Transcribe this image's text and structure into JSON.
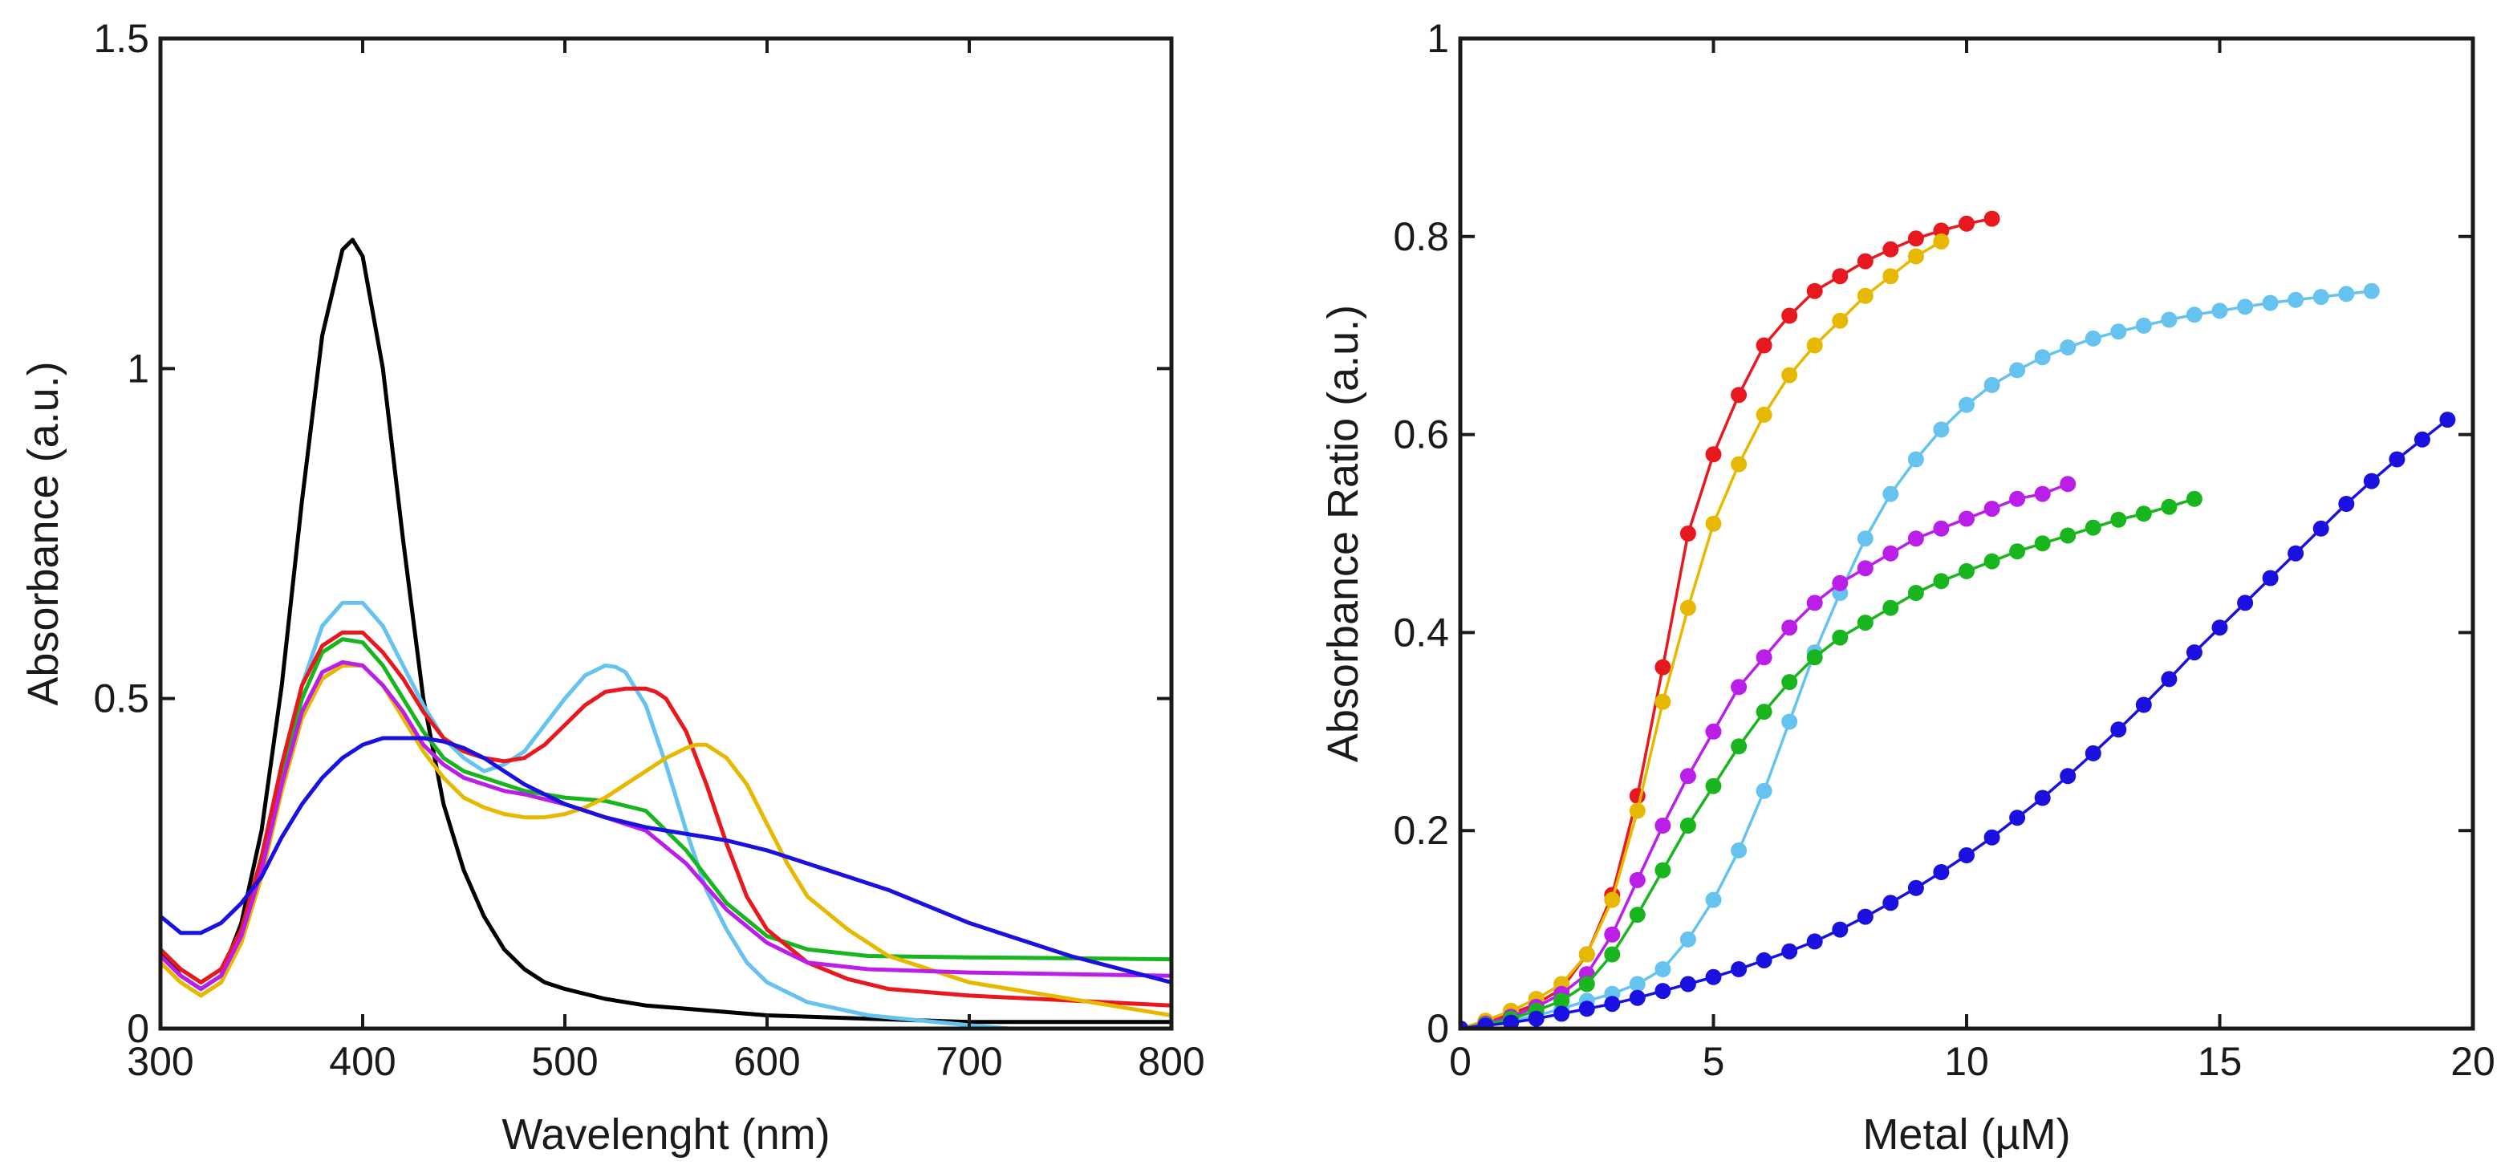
{
  "colors": {
    "black": "#000000",
    "red": "#e8191e",
    "yellow": "#e6b800",
    "lightblue": "#66c2ee",
    "magenta": "#bb1ee8",
    "green": "#19b51e",
    "blue": "#1a10e0"
  },
  "chart_data": [
    {
      "type": "line",
      "title": "",
      "xlabel": "Wavelenght (nm)",
      "ylabel": "Absorbance (a.u.)",
      "xlim": [
        300,
        800
      ],
      "ylim": [
        0,
        1.5
      ],
      "xticks": [
        300,
        400,
        500,
        600,
        700,
        800
      ],
      "xtick_labels": [
        "300",
        "400",
        "500",
        "600",
        "700",
        "800"
      ],
      "yticks": [
        0,
        0.5,
        1,
        1.5
      ],
      "ytick_labels": [
        "0",
        "0.5",
        "1",
        "1.5"
      ],
      "series": [
        {
          "name": "black",
          "color": "#000000",
          "x": [
            300,
            310,
            320,
            330,
            340,
            350,
            360,
            370,
            380,
            390,
            395,
            400,
            410,
            420,
            430,
            440,
            450,
            460,
            470,
            480,
            490,
            500,
            520,
            540,
            560,
            580,
            600,
            650,
            700,
            800
          ],
          "y": [
            0.12,
            0.08,
            0.06,
            0.08,
            0.16,
            0.3,
            0.52,
            0.8,
            1.05,
            1.18,
            1.195,
            1.17,
            1.0,
            0.74,
            0.5,
            0.34,
            0.24,
            0.17,
            0.12,
            0.09,
            0.07,
            0.06,
            0.045,
            0.035,
            0.03,
            0.025,
            0.02,
            0.015,
            0.01,
            0.01
          ]
        },
        {
          "name": "lightblue",
          "color": "#66c2ee",
          "x": [
            300,
            310,
            320,
            330,
            340,
            350,
            360,
            370,
            380,
            390,
            400,
            410,
            420,
            430,
            440,
            450,
            460,
            470,
            480,
            490,
            500,
            510,
            520,
            525,
            530,
            540,
            550,
            560,
            570,
            580,
            590,
            600,
            620,
            650,
            700,
            720
          ],
          "y": [
            0.11,
            0.08,
            0.06,
            0.08,
            0.14,
            0.24,
            0.38,
            0.52,
            0.61,
            0.645,
            0.645,
            0.61,
            0.55,
            0.49,
            0.44,
            0.41,
            0.39,
            0.4,
            0.42,
            0.46,
            0.5,
            0.535,
            0.55,
            0.548,
            0.54,
            0.49,
            0.4,
            0.3,
            0.21,
            0.15,
            0.1,
            0.07,
            0.04,
            0.02,
            0.005,
            0.0
          ]
        },
        {
          "name": "green",
          "color": "#19b51e",
          "x": [
            300,
            310,
            320,
            330,
            340,
            350,
            360,
            370,
            380,
            390,
            400,
            410,
            420,
            430,
            440,
            450,
            460,
            470,
            480,
            500,
            520,
            540,
            560,
            580,
            600,
            620,
            650,
            700,
            800
          ],
          "y": [
            0.12,
            0.09,
            0.07,
            0.09,
            0.15,
            0.25,
            0.38,
            0.5,
            0.57,
            0.59,
            0.585,
            0.55,
            0.5,
            0.45,
            0.41,
            0.39,
            0.38,
            0.37,
            0.36,
            0.35,
            0.345,
            0.33,
            0.27,
            0.19,
            0.14,
            0.12,
            0.11,
            0.108,
            0.105
          ]
        },
        {
          "name": "red",
          "color": "#e8191e",
          "x": [
            300,
            310,
            320,
            330,
            340,
            350,
            360,
            370,
            380,
            390,
            400,
            410,
            420,
            430,
            440,
            450,
            460,
            470,
            480,
            490,
            500,
            510,
            520,
            530,
            540,
            545,
            550,
            560,
            570,
            580,
            590,
            600,
            620,
            640,
            660,
            700,
            800
          ],
          "y": [
            0.12,
            0.09,
            0.07,
            0.09,
            0.15,
            0.26,
            0.4,
            0.52,
            0.58,
            0.6,
            0.6,
            0.57,
            0.53,
            0.48,
            0.44,
            0.42,
            0.41,
            0.405,
            0.41,
            0.43,
            0.46,
            0.49,
            0.51,
            0.515,
            0.515,
            0.51,
            0.5,
            0.45,
            0.37,
            0.28,
            0.2,
            0.15,
            0.1,
            0.075,
            0.06,
            0.05,
            0.035
          ]
        },
        {
          "name": "yellow",
          "color": "#e6b800",
          "x": [
            300,
            310,
            320,
            330,
            340,
            350,
            360,
            370,
            380,
            390,
            400,
            410,
            420,
            430,
            440,
            450,
            460,
            470,
            480,
            490,
            500,
            510,
            520,
            530,
            540,
            550,
            560,
            565,
            570,
            580,
            590,
            600,
            610,
            620,
            640,
            660,
            700,
            800
          ],
          "y": [
            0.1,
            0.07,
            0.05,
            0.07,
            0.13,
            0.23,
            0.36,
            0.47,
            0.53,
            0.55,
            0.55,
            0.52,
            0.47,
            0.42,
            0.38,
            0.35,
            0.335,
            0.325,
            0.32,
            0.32,
            0.325,
            0.335,
            0.35,
            0.37,
            0.39,
            0.41,
            0.425,
            0.43,
            0.43,
            0.41,
            0.37,
            0.31,
            0.25,
            0.2,
            0.15,
            0.11,
            0.07,
            0.02
          ]
        },
        {
          "name": "magenta",
          "color": "#bb1ee8",
          "x": [
            300,
            310,
            320,
            330,
            340,
            350,
            360,
            370,
            380,
            390,
            400,
            410,
            420,
            430,
            440,
            450,
            460,
            470,
            480,
            500,
            520,
            540,
            560,
            580,
            600,
            620,
            650,
            700,
            800
          ],
          "y": [
            0.11,
            0.08,
            0.06,
            0.08,
            0.14,
            0.24,
            0.37,
            0.48,
            0.54,
            0.555,
            0.55,
            0.52,
            0.48,
            0.43,
            0.4,
            0.38,
            0.37,
            0.36,
            0.355,
            0.34,
            0.32,
            0.3,
            0.25,
            0.18,
            0.13,
            0.1,
            0.09,
            0.085,
            0.08
          ]
        },
        {
          "name": "blue",
          "color": "#1a10e0",
          "x": [
            300,
            310,
            320,
            330,
            340,
            350,
            360,
            370,
            380,
            390,
            400,
            410,
            420,
            430,
            440,
            450,
            460,
            470,
            480,
            490,
            500,
            520,
            540,
            560,
            580,
            600,
            620,
            640,
            660,
            700,
            750,
            800
          ],
          "y": [
            0.17,
            0.145,
            0.145,
            0.16,
            0.19,
            0.23,
            0.29,
            0.34,
            0.38,
            0.41,
            0.43,
            0.44,
            0.44,
            0.44,
            0.435,
            0.425,
            0.41,
            0.39,
            0.37,
            0.355,
            0.34,
            0.32,
            0.305,
            0.295,
            0.285,
            0.27,
            0.25,
            0.23,
            0.21,
            0.16,
            0.11,
            0.07
          ]
        }
      ]
    },
    {
      "type": "line",
      "title": "",
      "xlabel": "Metal (µM)",
      "ylabel": "Absorbance Ratio (a.u.)",
      "xlim": [
        0,
        20
      ],
      "ylim": [
        0,
        1
      ],
      "xticks": [
        0,
        5,
        10,
        15,
        20
      ],
      "xtick_labels": [
        "0",
        "5",
        "10",
        "15",
        "20"
      ],
      "yticks": [
        0,
        0.2,
        0.4,
        0.6,
        0.8,
        1
      ],
      "ytick_labels": [
        "0",
        "0.2",
        "0.4",
        "0.6",
        "0.8",
        "1"
      ],
      "markers": true,
      "series": [
        {
          "name": "red",
          "color": "#e8191e",
          "x": [
            0,
            0.5,
            1,
            1.5,
            2,
            2.5,
            3,
            3.5,
            4,
            4.5,
            5,
            5.5,
            6,
            6.5,
            7,
            7.5,
            8,
            8.5,
            9,
            9.5,
            10,
            10.5
          ],
          "y": [
            0,
            0.005,
            0.015,
            0.025,
            0.04,
            0.075,
            0.135,
            0.235,
            0.365,
            0.5,
            0.58,
            0.64,
            0.69,
            0.72,
            0.745,
            0.76,
            0.775,
            0.787,
            0.798,
            0.806,
            0.813,
            0.818
          ]
        },
        {
          "name": "yellow",
          "color": "#e6b800",
          "x": [
            0,
            0.5,
            1,
            1.5,
            2,
            2.5,
            3,
            3.5,
            4,
            4.5,
            5,
            5.5,
            6,
            6.5,
            7,
            7.5,
            8,
            8.5,
            9,
            9.5
          ],
          "y": [
            0,
            0.008,
            0.018,
            0.03,
            0.045,
            0.075,
            0.13,
            0.22,
            0.33,
            0.425,
            0.51,
            0.57,
            0.62,
            0.66,
            0.69,
            0.715,
            0.74,
            0.76,
            0.78,
            0.795
          ]
        },
        {
          "name": "lightblue",
          "color": "#66c2ee",
          "x": [
            0,
            0.5,
            1,
            1.5,
            2,
            2.5,
            3,
            3.5,
            4,
            4.5,
            5,
            5.5,
            6,
            6.5,
            7,
            7.5,
            8,
            8.5,
            9,
            9.5,
            10,
            10.5,
            11,
            11.5,
            12,
            12.5,
            13,
            13.5,
            14,
            14.5,
            15,
            15.5,
            16,
            16.5,
            17,
            17.5,
            18
          ],
          "y": [
            0,
            0.004,
            0.008,
            0.013,
            0.02,
            0.028,
            0.035,
            0.045,
            0.06,
            0.09,
            0.13,
            0.18,
            0.24,
            0.31,
            0.38,
            0.44,
            0.495,
            0.54,
            0.575,
            0.605,
            0.63,
            0.65,
            0.665,
            0.678,
            0.688,
            0.697,
            0.704,
            0.71,
            0.716,
            0.721,
            0.725,
            0.729,
            0.733,
            0.736,
            0.739,
            0.742,
            0.745
          ]
        },
        {
          "name": "magenta",
          "color": "#bb1ee8",
          "x": [
            0,
            0.5,
            1,
            1.5,
            2,
            2.5,
            3,
            3.5,
            4,
            4.5,
            5,
            5.5,
            6,
            6.5,
            7,
            7.5,
            8,
            8.5,
            9,
            9.5,
            10,
            10.5,
            11,
            11.5,
            12
          ],
          "y": [
            0,
            0.005,
            0.012,
            0.022,
            0.035,
            0.055,
            0.095,
            0.15,
            0.205,
            0.255,
            0.3,
            0.345,
            0.375,
            0.405,
            0.43,
            0.45,
            0.465,
            0.48,
            0.495,
            0.505,
            0.515,
            0.525,
            0.535,
            0.54,
            0.55
          ]
        },
        {
          "name": "green",
          "color": "#19b51e",
          "x": [
            0,
            0.5,
            1,
            1.5,
            2,
            2.5,
            3,
            3.5,
            4,
            4.5,
            5,
            5.5,
            6,
            6.5,
            7,
            7.5,
            8,
            8.5,
            9,
            9.5,
            10,
            10.5,
            11,
            11.5,
            12,
            12.5,
            13,
            13.5,
            14,
            14.5
          ],
          "y": [
            0,
            0.004,
            0.01,
            0.018,
            0.028,
            0.045,
            0.075,
            0.115,
            0.16,
            0.205,
            0.245,
            0.285,
            0.32,
            0.35,
            0.375,
            0.395,
            0.41,
            0.425,
            0.44,
            0.452,
            0.462,
            0.472,
            0.482,
            0.49,
            0.498,
            0.506,
            0.514,
            0.52,
            0.527,
            0.535
          ]
        },
        {
          "name": "blue",
          "color": "#1a10e0",
          "x": [
            0,
            0.5,
            1,
            1.5,
            2,
            2.5,
            3,
            3.5,
            4,
            4.5,
            5,
            5.5,
            6,
            6.5,
            7,
            7.5,
            8,
            8.5,
            9,
            9.5,
            10,
            10.5,
            11,
            11.5,
            12,
            12.5,
            13,
            13.5,
            14,
            14.5,
            15,
            15.5,
            16,
            16.5,
            17,
            17.5,
            18,
            18.5,
            19,
            19.5
          ],
          "y": [
            0,
            0.003,
            0.006,
            0.01,
            0.015,
            0.02,
            0.025,
            0.031,
            0.038,
            0.045,
            0.052,
            0.06,
            0.069,
            0.078,
            0.088,
            0.1,
            0.113,
            0.127,
            0.142,
            0.158,
            0.175,
            0.193,
            0.213,
            0.233,
            0.255,
            0.278,
            0.302,
            0.327,
            0.353,
            0.38,
            0.405,
            0.43,
            0.455,
            0.48,
            0.505,
            0.53,
            0.553,
            0.575,
            0.595,
            0.615
          ]
        }
      ]
    }
  ]
}
